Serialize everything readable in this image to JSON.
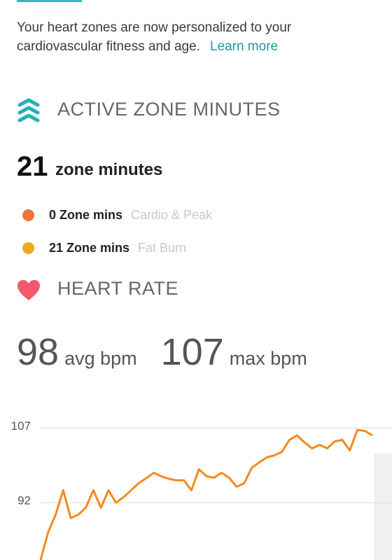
{
  "banner": {
    "text": "Your heart zones are now personalized to your cardiovascular fitness and age.",
    "link": "Learn more"
  },
  "zone_minutes": {
    "heading": "ACTIVE ZONE MINUTES",
    "total": 21,
    "unit": "zone minutes",
    "items": [
      {
        "value": "0 Zone mins",
        "label": "Cardio & Peak",
        "color": "#ef7437"
      },
      {
        "value": "21 Zone mins",
        "label": "Fat Burn",
        "color": "#eea81d"
      }
    ]
  },
  "heart_rate": {
    "heading": "HEART RATE",
    "avg": 98,
    "avg_unit": "avg bpm",
    "max": 107,
    "max_unit": "max bpm"
  },
  "chart_data": {
    "type": "line",
    "color": "#f5891f",
    "values": [
      80.5,
      86.1,
      89.6,
      94.5,
      88.9,
      89.6,
      91,
      94.5,
      91,
      94.5,
      92,
      93.1,
      94.5,
      95.9,
      96.9,
      98,
      97.3,
      96.8,
      96.5,
      96.5,
      94.5,
      98.7,
      97.3,
      97,
      98,
      97,
      95.2,
      95.9,
      99,
      100.1,
      101.1,
      101.5,
      102.2,
      104.6,
      105.5,
      104.1,
      102.9,
      103.6,
      102.9,
      104.3,
      104.6,
      102.5,
      106.6,
      106.4,
      105.5
    ],
    "ylim": [
      80.5,
      110
    ],
    "yticks": [
      92,
      107
    ],
    "grid": true
  }
}
